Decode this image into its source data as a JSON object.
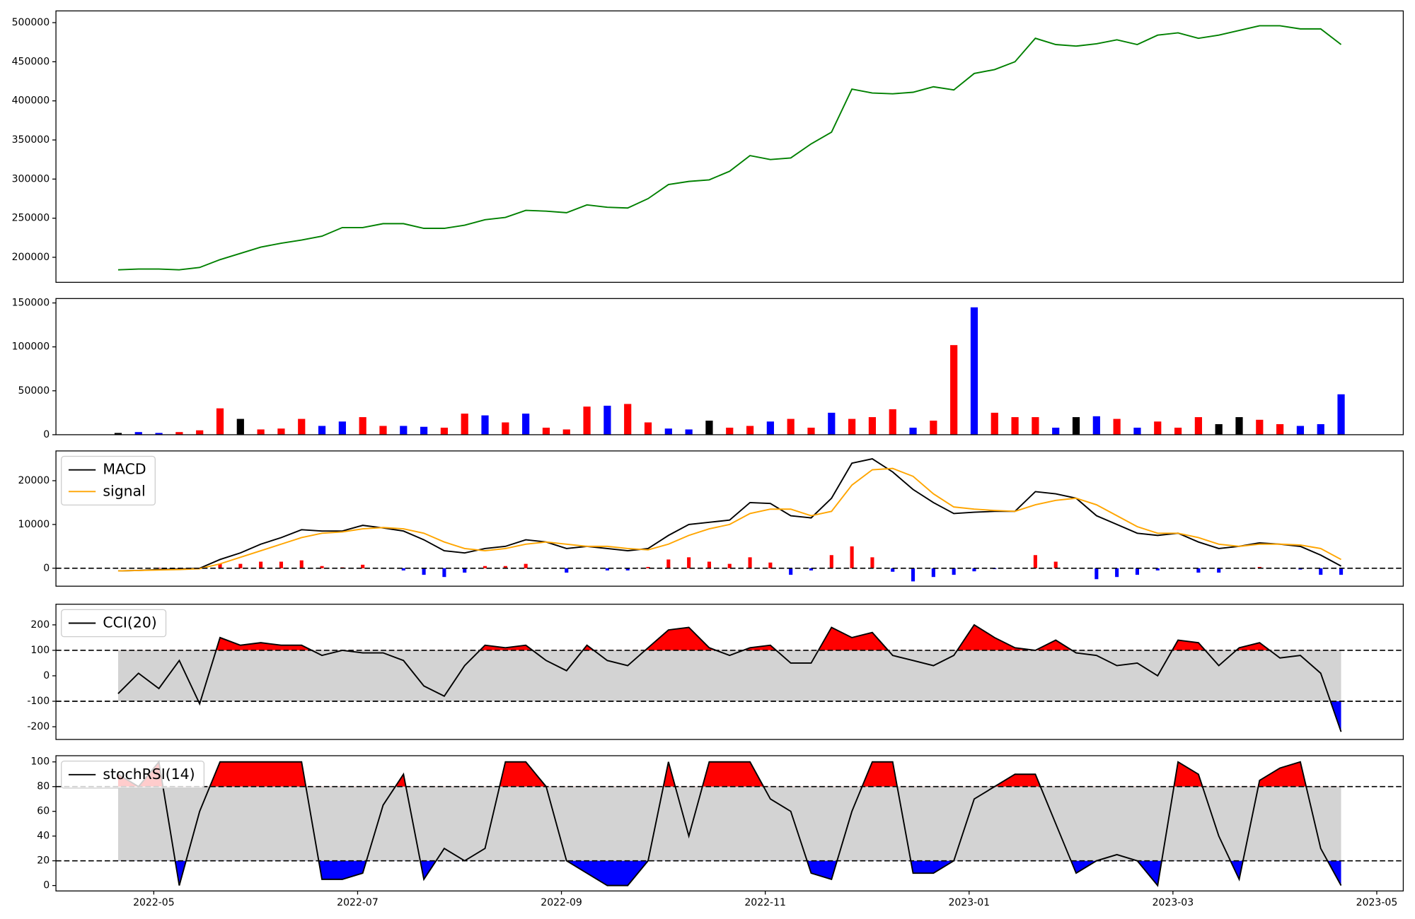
{
  "chart_data": [
    {
      "type": "line",
      "x": [
        -0.35,
        -0.15,
        0.05,
        0.25,
        0.45,
        0.65,
        0.85,
        1.05,
        1.25,
        1.45,
        1.65,
        1.85,
        2.05,
        2.25,
        2.45,
        2.65,
        2.85,
        3.05,
        3.25,
        3.45,
        3.65,
        3.85,
        4.05,
        4.25,
        4.45,
        4.65,
        4.85,
        5.05,
        5.25,
        5.45,
        5.65,
        5.85,
        6.05,
        6.25,
        6.45,
        6.65,
        6.85,
        7.05,
        7.25,
        7.45,
        7.65,
        7.85,
        8.05,
        8.25,
        8.45,
        8.65,
        8.85,
        9.05,
        9.25,
        9.45,
        9.65,
        9.85,
        10.05,
        10.25,
        10.45,
        10.65,
        10.85,
        11.05,
        11.25,
        11.45,
        11.65
      ],
      "xlim": [
        -0.96,
        12.26
      ],
      "ylim": [
        168000,
        515000
      ],
      "yticks": [
        200000,
        250000,
        300000,
        350000,
        400000,
        450000,
        500000
      ],
      "series": [
        {
          "color": "green",
          "values": [
            184000,
            185000,
            185000,
            184000,
            187000,
            197000,
            205000,
            213000,
            218000,
            222000,
            227000,
            238000,
            238000,
            243000,
            243000,
            237000,
            237000,
            241000,
            248000,
            251000,
            260000,
            259000,
            257000,
            267000,
            264000,
            263000,
            275000,
            293000,
            297000,
            299000,
            310000,
            330000,
            325000,
            327000,
            345000,
            360000,
            415000,
            410000,
            409000,
            411000,
            418000,
            414000,
            435000,
            440000,
            450000,
            480000,
            472000,
            470000,
            473000,
            478000,
            472000,
            484000,
            487000,
            480000,
            484000,
            490000,
            496000,
            496000,
            492000,
            492000,
            472000
          ]
        }
      ]
    },
    {
      "type": "bar",
      "x": [
        -0.35,
        -0.15,
        0.05,
        0.25,
        0.45,
        0.65,
        0.85,
        1.05,
        1.25,
        1.45,
        1.65,
        1.85,
        2.05,
        2.25,
        2.45,
        2.65,
        2.85,
        3.05,
        3.25,
        3.45,
        3.65,
        3.85,
        4.05,
        4.25,
        4.45,
        4.65,
        4.85,
        5.05,
        5.25,
        5.45,
        5.65,
        5.85,
        6.05,
        6.25,
        6.45,
        6.65,
        6.85,
        7.05,
        7.25,
        7.45,
        7.65,
        7.85,
        8.05,
        8.25,
        8.45,
        8.65,
        8.85,
        9.05,
        9.25,
        9.45,
        9.65,
        9.85,
        10.05,
        10.25,
        10.45,
        10.65,
        10.85,
        11.05,
        11.25,
        11.45,
        11.65
      ],
      "xlim": [
        -0.96,
        12.26
      ],
      "ylim": [
        0,
        155000
      ],
      "yticks": [
        0,
        50000,
        100000,
        150000
      ],
      "values": [
        2000,
        3000,
        2000,
        3000,
        5000,
        30000,
        18000,
        6000,
        7000,
        18000,
        10000,
        15000,
        20000,
        10000,
        10000,
        9000,
        8000,
        24000,
        22000,
        14000,
        24000,
        8000,
        6000,
        32000,
        33000,
        35000,
        14000,
        7000,
        6000,
        16000,
        8000,
        10000,
        15000,
        18000,
        8000,
        25000,
        18000,
        20000,
        29000,
        8000,
        16000,
        102000,
        145000,
        25000,
        20000,
        20000,
        8000,
        20000,
        21000,
        18000,
        8000,
        15000,
        8000,
        20000,
        12000,
        20000,
        17000,
        12000,
        10000,
        12000,
        46000
      ],
      "colors": [
        "black",
        "blue",
        "blue",
        "red",
        "red",
        "red",
        "black",
        "red",
        "red",
        "red",
        "blue",
        "blue",
        "red",
        "red",
        "blue",
        "blue",
        "red",
        "red",
        "blue",
        "red",
        "blue",
        "red",
        "red",
        "red",
        "blue",
        "red",
        "red",
        "blue",
        "blue",
        "black",
        "red",
        "red",
        "blue",
        "red",
        "red",
        "blue",
        "red",
        "red",
        "red",
        "blue",
        "red",
        "red",
        "blue",
        "red",
        "red",
        "red",
        "blue",
        "black",
        "blue",
        "red",
        "blue",
        "red",
        "red",
        "red",
        "black",
        "black",
        "red",
        "red",
        "blue",
        "blue",
        "blue"
      ]
    },
    {
      "type": "line",
      "x": [
        -0.35,
        -0.15,
        0.05,
        0.25,
        0.45,
        0.65,
        0.85,
        1.05,
        1.25,
        1.45,
        1.65,
        1.85,
        2.05,
        2.25,
        2.45,
        2.65,
        2.85,
        3.05,
        3.25,
        3.45,
        3.65,
        3.85,
        4.05,
        4.25,
        4.45,
        4.65,
        4.85,
        5.05,
        5.25,
        5.45,
        5.65,
        5.85,
        6.05,
        6.25,
        6.45,
        6.65,
        6.85,
        7.05,
        7.25,
        7.45,
        7.65,
        7.85,
        8.05,
        8.25,
        8.45,
        8.65,
        8.85,
        9.05,
        9.25,
        9.45,
        9.65,
        9.85,
        10.05,
        10.25,
        10.45,
        10.65,
        10.85,
        11.05,
        11.25,
        11.45,
        11.65
      ],
      "xlim": [
        -0.96,
        12.26
      ],
      "ylim": [
        -4100,
        26800
      ],
      "yticks": [
        0,
        10000,
        20000
      ],
      "hlines": [
        0
      ],
      "legend": "upper left",
      "series": [
        {
          "name": "MACD",
          "color": "black",
          "values": [
            -600,
            -500,
            -300,
            -200,
            0,
            2000,
            3500,
            5500,
            7000,
            8800,
            8500,
            8500,
            9800,
            9200,
            8500,
            6500,
            4000,
            3500,
            4500,
            5000,
            6500,
            6000,
            4500,
            5000,
            4500,
            4000,
            4500,
            7500,
            10000,
            10500,
            11000,
            15000,
            14800,
            12000,
            11500,
            16000,
            24000,
            25000,
            22000,
            18000,
            15000,
            12500,
            12800,
            13000,
            13000,
            17500,
            17000,
            16000,
            12000,
            10000,
            8000,
            7500,
            8000,
            6000,
            4500,
            5000,
            5800,
            5500,
            5000,
            3000,
            500
          ]
        },
        {
          "name": "signal",
          "color": "orange",
          "values": [
            -600,
            -500,
            -400,
            -300,
            -100,
            1000,
            2500,
            4000,
            5500,
            7000,
            8000,
            8300,
            9000,
            9300,
            9000,
            8000,
            6000,
            4500,
            4000,
            4500,
            5500,
            6000,
            5500,
            5000,
            5000,
            4500,
            4200,
            5500,
            7500,
            9000,
            10000,
            12500,
            13500,
            13500,
            12000,
            13000,
            19000,
            22500,
            22800,
            21000,
            17000,
            14000,
            13500,
            13200,
            13000,
            14500,
            15500,
            16000,
            14500,
            12000,
            9500,
            8000,
            8000,
            7000,
            5500,
            5000,
            5500,
            5500,
            5300,
            4500,
            2000
          ]
        }
      ],
      "histogram": {
        "positive_color": "red",
        "negative_color": "blue",
        "values": [
          0,
          0,
          100,
          100,
          100,
          1000,
          1000,
          1500,
          1500,
          1800,
          500,
          200,
          800,
          -100,
          -500,
          -1500,
          -2000,
          -1000,
          500,
          500,
          1000,
          0,
          -1000,
          0,
          -500,
          -500,
          300,
          2000,
          2500,
          1500,
          1000,
          2500,
          1300,
          -1500,
          -500,
          3000,
          5000,
          2500,
          -800,
          -3000,
          -2000,
          -1500,
          -700,
          -200,
          0,
          3000,
          1500,
          0,
          -2500,
          -2000,
          -1500,
          -500,
          0,
          -1000,
          -1000,
          0,
          300,
          0,
          -300,
          -1500,
          -1500
        ]
      }
    },
    {
      "type": "line",
      "x": [
        -0.35,
        -0.15,
        0.05,
        0.25,
        0.45,
        0.65,
        0.85,
        1.05,
        1.25,
        1.45,
        1.65,
        1.85,
        2.05,
        2.25,
        2.45,
        2.65,
        2.85,
        3.05,
        3.25,
        3.45,
        3.65,
        3.85,
        4.05,
        4.25,
        4.45,
        4.65,
        4.85,
        5.05,
        5.25,
        5.45,
        5.65,
        5.85,
        6.05,
        6.25,
        6.45,
        6.65,
        6.85,
        7.05,
        7.25,
        7.45,
        7.65,
        7.85,
        8.05,
        8.25,
        8.45,
        8.65,
        8.85,
        9.05,
        9.25,
        9.45,
        9.65,
        9.85,
        10.05,
        10.25,
        10.45,
        10.65,
        10.85,
        11.05,
        11.25,
        11.45,
        11.65
      ],
      "xlim": [
        -0.96,
        12.26
      ],
      "ylim": [
        -250,
        281
      ],
      "yticks": [
        -200,
        -100,
        0,
        100,
        200
      ],
      "hlines": [
        100,
        -100
      ],
      "legend": "upper left",
      "band_color": "lightgray",
      "above_color": "red",
      "below_color": "blue",
      "series": [
        {
          "name": "CCI(20)",
          "color": "black",
          "values": [
            -70,
            10,
            -50,
            60,
            -110,
            150,
            120,
            130,
            120,
            120,
            80,
            100,
            90,
            90,
            60,
            -40,
            -80,
            40,
            120,
            110,
            120,
            60,
            20,
            120,
            60,
            40,
            110,
            180,
            190,
            110,
            80,
            110,
            120,
            50,
            50,
            190,
            150,
            170,
            80,
            60,
            40,
            80,
            200,
            150,
            110,
            100,
            140,
            90,
            80,
            40,
            50,
            0,
            140,
            130,
            40,
            110,
            130,
            70,
            80,
            10,
            -220
          ]
        }
      ]
    },
    {
      "type": "line",
      "x": [
        -0.35,
        -0.15,
        0.05,
        0.25,
        0.45,
        0.65,
        0.85,
        1.05,
        1.25,
        1.45,
        1.65,
        1.85,
        2.05,
        2.25,
        2.45,
        2.65,
        2.85,
        3.05,
        3.25,
        3.45,
        3.65,
        3.85,
        4.05,
        4.25,
        4.45,
        4.65,
        4.85,
        5.05,
        5.25,
        5.45,
        5.65,
        5.85,
        6.05,
        6.25,
        6.45,
        6.65,
        6.85,
        7.05,
        7.25,
        7.45,
        7.65,
        7.85,
        8.05,
        8.25,
        8.45,
        8.65,
        8.85,
        9.05,
        9.25,
        9.45,
        9.65,
        9.85,
        10.05,
        10.25,
        10.45,
        10.65,
        10.85,
        11.05,
        11.25,
        11.45,
        11.65
      ],
      "xlim": [
        -0.96,
        12.26
      ],
      "ylim": [
        -4.4,
        105
      ],
      "yticks": [
        0,
        20,
        40,
        60,
        80,
        100
      ],
      "hlines": [
        80,
        20
      ],
      "legend": "upper left",
      "band_color": "lightgray",
      "above_color": "red",
      "below_color": "blue",
      "xticks": [
        {
          "value": 0,
          "label": "2022-05"
        },
        {
          "value": 2,
          "label": "2022-07"
        },
        {
          "value": 4,
          "label": "2022-09"
        },
        {
          "value": 6,
          "label": "2022-11"
        },
        {
          "value": 8,
          "label": "2023-01"
        },
        {
          "value": 10,
          "label": "2023-03"
        },
        {
          "value": 12,
          "label": "2023-05"
        }
      ],
      "series": [
        {
          "name": "stochRSI(14)",
          "color": "black",
          "values": [
            90,
            80,
            100,
            0,
            60,
            100,
            100,
            100,
            100,
            100,
            5,
            5,
            10,
            65,
            90,
            5,
            30,
            20,
            30,
            100,
            100,
            80,
            20,
            10,
            0,
            0,
            20,
            100,
            40,
            100,
            100,
            100,
            70,
            60,
            10,
            5,
            60,
            100,
            100,
            10,
            10,
            20,
            70,
            80,
            90,
            90,
            50,
            10,
            20,
            25,
            20,
            0,
            100,
            90,
            40,
            5,
            85,
            95,
            100,
            30,
            0
          ]
        }
      ]
    }
  ]
}
